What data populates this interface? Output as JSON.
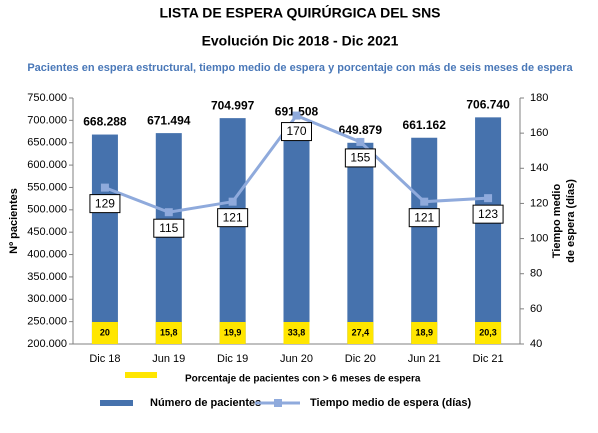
{
  "chart_data": {
    "type": "bar",
    "title": "LISTA DE ESPERA QUIRÚRGICA DEL SNS",
    "subtitle": "Evolución Dic 2018 - Dic 2021",
    "caption": "Pacientes en espera estructural, tiempo medio de espera  y porcentaje con más de seis meses de espera",
    "ylabel": "Nº pacientes",
    "y2label": [
      "Tiempo medio",
      "de espera (días)"
    ],
    "categories": [
      "Dic 18",
      "Jun 19",
      "Dic 19",
      "Jun 20",
      "Dic 20",
      "Jun 21",
      "Dic 21"
    ],
    "series": [
      {
        "name": "Número de pacientes",
        "type": "bar",
        "axis": "y",
        "color": "#4672ad",
        "values": [
          668288,
          671494,
          704997,
          691508,
          649879,
          661162,
          706740
        ],
        "value_labels": [
          "668.288",
          "671.494",
          "704.997",
          "691.508",
          "649.879",
          "661.162",
          "706.740"
        ]
      },
      {
        "name": "Tiempo medio de espera (días)",
        "type": "line",
        "axis": "y2",
        "color": "#8faadc",
        "values": [
          129,
          115,
          121,
          170,
          155,
          121,
          123
        ]
      },
      {
        "name": "Porcentaje de pacientes con > 6 meses  de espera",
        "type": "box",
        "color": "#ffe600",
        "values": [
          20,
          15.8,
          19.9,
          33.8,
          27.4,
          18.9,
          20.3
        ],
        "value_labels": [
          "20",
          "15,8",
          "19,9",
          "33,8",
          "27,4",
          "18,9",
          "20,3"
        ]
      }
    ],
    "ylim": [
      200000,
      750000
    ],
    "yticks": [
      {
        "value": 200000,
        "label": "200.000"
      },
      {
        "value": 250000,
        "label": "250.000"
      },
      {
        "value": 300000,
        "label": "300.000"
      },
      {
        "value": 350000,
        "label": "350.000"
      },
      {
        "value": 400000,
        "label": "400.000"
      },
      {
        "value": 450000,
        "label": "450.000"
      },
      {
        "value": 500000,
        "label": "500.000"
      },
      {
        "value": 550000,
        "label": "550.000"
      },
      {
        "value": 600000,
        "label": "600.000"
      },
      {
        "value": 650000,
        "label": "650.000"
      },
      {
        "value": 700000,
        "label": "700.000"
      },
      {
        "value": 750000,
        "label": "750.000"
      }
    ],
    "y2lim": [
      40,
      180
    ],
    "y2ticks": [
      40,
      60,
      80,
      100,
      120,
      140,
      160,
      180
    ],
    "grid": false
  }
}
